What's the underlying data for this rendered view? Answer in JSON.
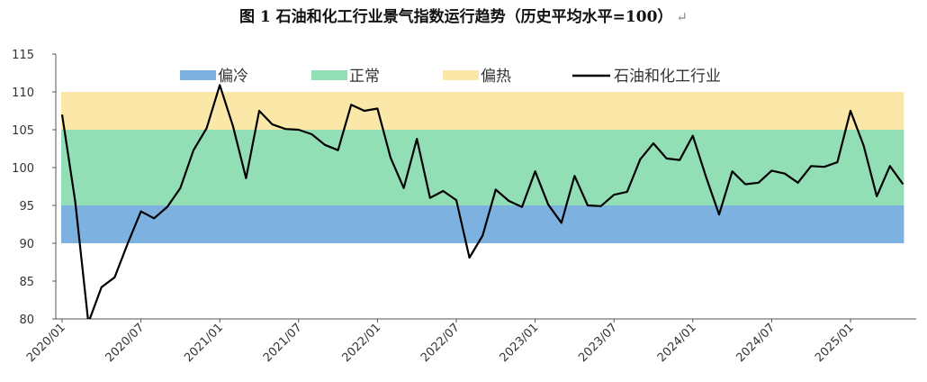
{
  "chart_data": {
    "type": "line",
    "title": "图 1  石油和化工行业景气指数运行趋势（历史平均水平=100）",
    "title_mark": "↵",
    "ylim": [
      80,
      115
    ],
    "yticks": [
      80,
      85,
      90,
      95,
      100,
      105,
      110,
      115
    ],
    "xtick_labels": [
      "2020/01",
      "2020/07",
      "2021/01",
      "2021/07",
      "2022/01",
      "2022/07",
      "2023/01",
      "2023/07",
      "2024/01",
      "2024/07",
      "2025/01"
    ],
    "bands": [
      {
        "name": "偏冷",
        "from": 90,
        "to": 95,
        "color": "#7cb1e0"
      },
      {
        "name": "正常",
        "from": 95,
        "to": 105,
        "color": "#92dfb5"
      },
      {
        "name": "偏热",
        "from": 105,
        "to": 110,
        "color": "#fbe7a8"
      }
    ],
    "series": [
      {
        "name": "石油和化工行业",
        "color": "#000000",
        "x": [
          "2020/01",
          "2020/02",
          "2020/03",
          "2020/04",
          "2020/05",
          "2020/06",
          "2020/07",
          "2020/08",
          "2020/09",
          "2020/10",
          "2020/11",
          "2020/12",
          "2021/01",
          "2021/02",
          "2021/03",
          "2021/04",
          "2021/05",
          "2021/06",
          "2021/07",
          "2021/08",
          "2021/09",
          "2021/10",
          "2021/11",
          "2021/12",
          "2022/01",
          "2022/02",
          "2022/03",
          "2022/04",
          "2022/05",
          "2022/06",
          "2022/07",
          "2022/08",
          "2022/09",
          "2022/10",
          "2022/11",
          "2022/12",
          "2023/01",
          "2023/02",
          "2023/03",
          "2023/04",
          "2023/05",
          "2023/06",
          "2023/07",
          "2023/08",
          "2023/09",
          "2023/10",
          "2023/11",
          "2023/12",
          "2024/01",
          "2024/02",
          "2024/03",
          "2024/04",
          "2024/05",
          "2024/06",
          "2024/07",
          "2024/08",
          "2024/09",
          "2024/10",
          "2024/11",
          "2024/12",
          "2025/01",
          "2025/02",
          "2025/03",
          "2025/04",
          "2025/05"
        ],
        "values": [
          107.0,
          95.5,
          79.5,
          84.2,
          85.5,
          90.0,
          94.2,
          93.3,
          94.8,
          97.3,
          102.3,
          105.2,
          110.9,
          105.5,
          98.6,
          107.5,
          105.7,
          105.1,
          105.0,
          104.4,
          103.0,
          102.3,
          108.3,
          107.5,
          107.8,
          101.3,
          97.3,
          103.8,
          96.0,
          96.9,
          95.7,
          88.1,
          91.0,
          97.1,
          95.6,
          94.8,
          99.5,
          95.1,
          92.7,
          98.9,
          95.0,
          94.9,
          96.4,
          96.8,
          101.1,
          103.2,
          101.2,
          101.0,
          104.2,
          98.8,
          93.8,
          99.5,
          97.8,
          98.0,
          99.6,
          99.2,
          98.0,
          100.2,
          100.1,
          100.7,
          107.5,
          102.9,
          96.2,
          100.2,
          97.8
        ]
      }
    ],
    "legend_placement": "top"
  }
}
